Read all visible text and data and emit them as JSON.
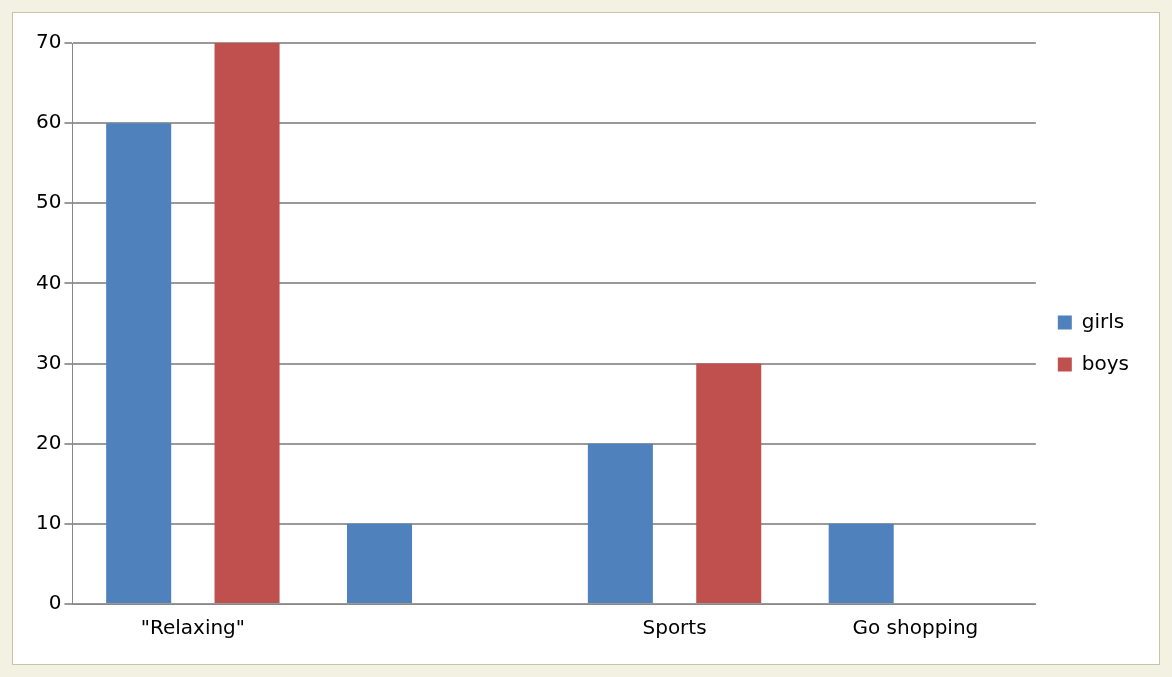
{
  "chart_data": {
    "type": "bar",
    "categories": [
      "\"Relaxing\"",
      null,
      "Sports",
      "Go shopping"
    ],
    "series": [
      {
        "name": "girls",
        "color": "#4f81bd",
        "values": [
          60,
          10,
          20,
          10
        ]
      },
      {
        "name": "boys",
        "color": "#c0504d",
        "values": [
          70,
          0,
          30,
          0
        ]
      }
    ],
    "ylim": [
      0,
      70
    ],
    "yticks": [
      0,
      10,
      20,
      30,
      40,
      50,
      60,
      70
    ],
    "grid": "y",
    "legend": "right"
  }
}
